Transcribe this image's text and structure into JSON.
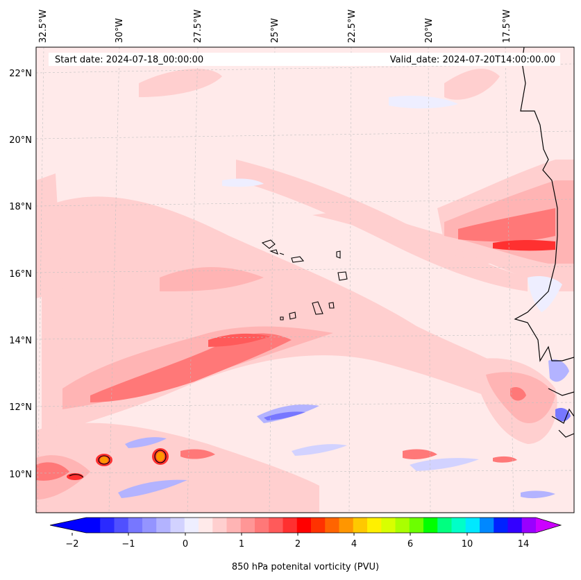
{
  "header": {
    "start_date": "Start date: 2024-07-18_00:00:00",
    "valid_date": "Valid_date: 2024-07-20T14:00:00.00"
  },
  "longitude_labels": [
    "32.5°W",
    "30°W",
    "27.5°W",
    "25°W",
    "22.5°W",
    "20°W",
    "17.5°W"
  ],
  "latitude_labels": [
    "22°N",
    "20°N",
    "18°N",
    "16°N",
    "14°N",
    "12°N",
    "10°N"
  ],
  "colorbar": {
    "label": "850 hPa potenital vorticity (PVU)",
    "tick_labels": [
      "−2",
      "−1",
      "0",
      "1",
      "2",
      "4",
      "6",
      "10",
      "14"
    ],
    "colors": [
      "#0000ff",
      "#2a2aff",
      "#5050ff",
      "#7777ff",
      "#9494ff",
      "#b3b3ff",
      "#d2d2ff",
      "#eeeeff",
      "#ffeaea",
      "#ffcfcf",
      "#ffb4b4",
      "#ff9696",
      "#ff7878",
      "#ff5a5a",
      "#ff3030",
      "#ff0000",
      "#ff3200",
      "#ff6400",
      "#ff9600",
      "#ffc800",
      "#fff000",
      "#d8ff00",
      "#aaff00",
      "#6cff00",
      "#00ff00",
      "#00ff80",
      "#00ffc8",
      "#00e8ff",
      "#0088ff",
      "#0022ff",
      "#3300ff",
      "#9900ff"
    ],
    "under_color": "#0000ff",
    "over_color": "#cc00ff"
  }
}
